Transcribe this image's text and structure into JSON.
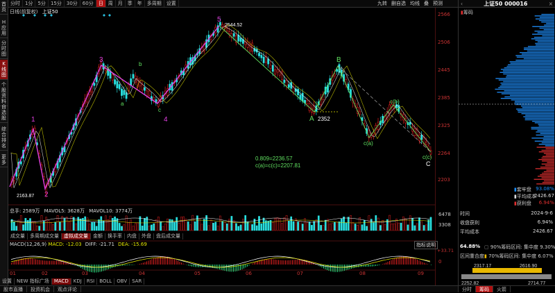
{
  "sidebar": {
    "tabs": [
      "首页",
      "H应用",
      "分时图",
      "K线图",
      "个股资料",
      "自选股",
      "综合排名",
      "更多"
    ],
    "active": 3
  },
  "topbar": {
    "periods": [
      "分时",
      "1分",
      "5分",
      "15分",
      "30分",
      "60分",
      "日",
      "周",
      "月",
      "季",
      "年",
      "多周期",
      "设置"
    ],
    "active": 6,
    "tools": [
      "九转",
      "删自选",
      "均线",
      "叠",
      "预测"
    ]
  },
  "info": {
    "period": "日线(前复权)",
    "name": "上证50"
  },
  "yaxis": {
    "labels": [
      "2566",
      "2506",
      "2445",
      "2385",
      "2325",
      "2264",
      "2203"
    ]
  },
  "annotations": {
    "high": "2544.52",
    "low": "2163.87",
    "mid": "2352",
    "wave_labels": [
      "1",
      "2",
      "3",
      "4",
      "5",
      "A",
      "B",
      "C",
      "a",
      "b",
      "c",
      "c(a)",
      "c(b)",
      "c(c)"
    ],
    "fib1": "0.809=2236.57",
    "fib2": "c(a)=c(c)=2207.81"
  },
  "volume": {
    "legend_total": "总手: 2589万",
    "legend_ma5": "MAVOL5: 3628万",
    "legend_ma10": "MAVOL10: 3774万",
    "y_top": "6478",
    "y_mid": "3308",
    "tabs": [
      "成交量",
      "多周期成交量",
      "虚拟成交量",
      "金额",
      "换手率",
      "内盘",
      "外盘",
      "盘后成交量"
    ],
    "active_tab": 2
  },
  "macd": {
    "params": "MACD(12,26,9)",
    "value": "MACD: -12.03",
    "diff": "DIFF: -21.71",
    "dea": "DEA: -15.69",
    "y_top": "+33.71",
    "y_zero": "0",
    "help": "指标说明"
  },
  "xaxis": {
    "labels": [
      "01",
      "02",
      "03",
      "04",
      "05",
      "06",
      "07",
      "08",
      "09"
    ]
  },
  "bottom_tabs": {
    "tabs": [
      "设置",
      "NEW 指标广场",
      "MACD",
      "KDJ",
      "RSI",
      "BOLL",
      "OBV",
      "SAR"
    ],
    "active": 2
  },
  "bottom_tabs2": {
    "tabs": [
      "股市直播",
      "投资机会",
      "观点评论"
    ]
  },
  "right": {
    "title": "上证50 000016",
    "section": "筹码",
    "legend": [
      {
        "label": "套牢盘",
        "value": "93.08%",
        "color": "#1e90ff"
      },
      {
        "label": "平均成本",
        "value": "2426.67",
        "color": "#dddddd"
      },
      {
        "label": "获利盘",
        "value": "6.94%",
        "color": "#e03030"
      }
    ],
    "info_rows": [
      {
        "k": "时间",
        "v": "2024-9-6"
      },
      {
        "k": "收盘获利",
        "v": "6.94%"
      },
      {
        "k": "平均成本",
        "v": "2426.67"
      }
    ],
    "conc1": {
      "pct": "64.88%",
      "text": "90%筹码区间: 集中度 9.30%"
    },
    "conc2": {
      "label": "区间重合度",
      "text": "70%筹码区间: 集中度 6.07%"
    },
    "range_labels": [
      "2317.17",
      "2616.90",
      "2252.82",
      "2714.77"
    ],
    "bottom_tabs": [
      "分时",
      "筹码",
      "火箭"
    ],
    "active_tab": 1
  }
}
